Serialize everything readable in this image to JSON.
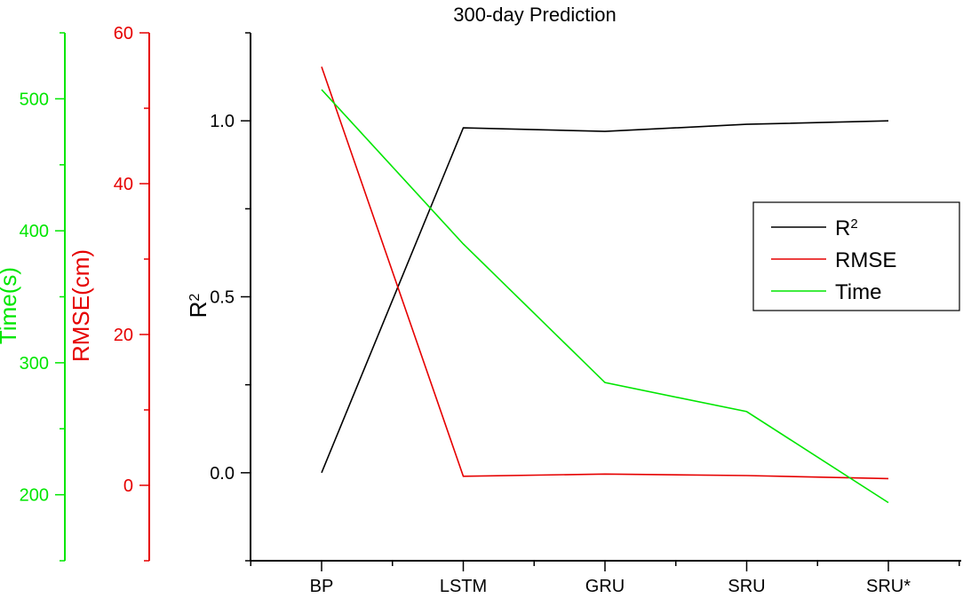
{
  "chart_data": {
    "type": "line",
    "title": "300-day Prediction",
    "categories": [
      "BP",
      "LSTM",
      "GRU",
      "SRU",
      "SRU*"
    ],
    "axes": {
      "r2": {
        "label": "R",
        "label_superscript": "2",
        "color": "#000000",
        "range": [
          -0.25,
          1.25
        ],
        "ticks": [
          0.0,
          0.5,
          1.0
        ],
        "tick_labels": [
          "0.0",
          "0.5",
          "1.0"
        ]
      },
      "rmse": {
        "label": "RMSE(cm)",
        "color": "#e60000",
        "range": [
          -10,
          60
        ],
        "ticks": [
          0,
          20,
          40,
          60
        ],
        "tick_labels": [
          "0",
          "20",
          "40",
          "60"
        ]
      },
      "time": {
        "label": "Time(s)",
        "color": "#00e600",
        "range": [
          150,
          550
        ],
        "ticks": [
          200,
          300,
          400,
          500
        ],
        "tick_labels": [
          "200",
          "300",
          "400",
          "500"
        ]
      }
    },
    "series": [
      {
        "name": "R",
        "name_superscript": "2",
        "axis": "r2",
        "color": "#000000",
        "values": [
          0.0,
          0.98,
          0.97,
          0.99,
          1.0
        ]
      },
      {
        "name": "RMSE",
        "axis": "rmse",
        "color": "#e60000",
        "values": [
          55.5,
          1.2,
          1.5,
          1.3,
          0.9
        ]
      },
      {
        "name": "Time",
        "axis": "time",
        "color": "#00e600",
        "values": [
          507,
          390,
          285,
          263,
          194
        ]
      }
    ],
    "legend": {
      "placement": "right"
    },
    "grid": false
  }
}
